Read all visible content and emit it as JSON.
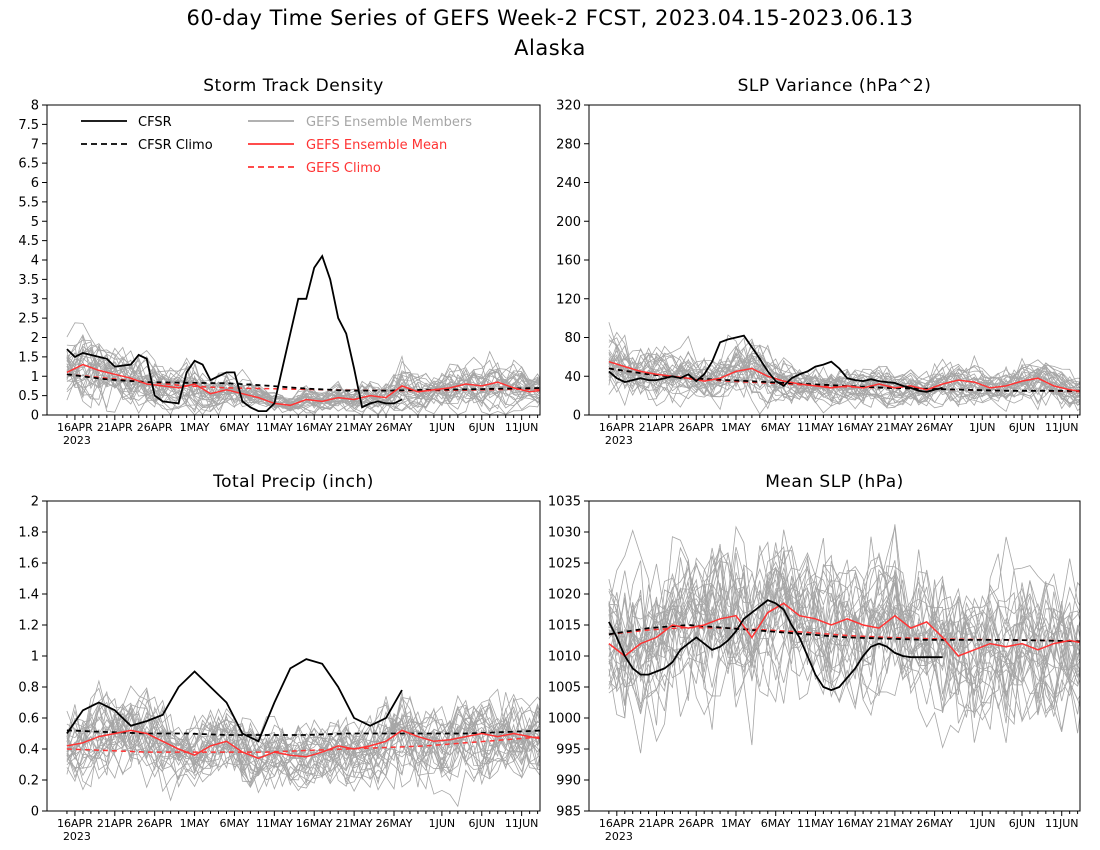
{
  "title": "60-day Time Series of GEFS Week-2 FCST, 2023.04.15-2023.06.13",
  "subtitle": "Alaska",
  "x_tick_labels": [
    "16APR",
    "21APR",
    "26APR",
    "1MAY",
    "6MAY",
    "11MAY",
    "16MAY",
    "21MAY",
    "26MAY",
    "1JUN",
    "6JUN",
    "11JUN"
  ],
  "year_label": "2023",
  "legend": {
    "cfsr": "CFSR",
    "cfsr_climo": "CFSR Climo",
    "members": "GEFS Ensemble Members",
    "mean": "GEFS Ensemble Mean",
    "gefs_climo": "GEFS Climo"
  },
  "colors": {
    "cfsr": "#000000",
    "members": "#a6a6a6",
    "mean": "#ff3333",
    "gefs_climo": "#ff3333"
  },
  "chart_data": [
    {
      "type": "line",
      "title": "Storm Track Density",
      "ylim": [
        0,
        8
      ],
      "yticks": [
        "0",
        "0.5",
        "1",
        "1.5",
        "2",
        "2.5",
        "3",
        "3.5",
        "4",
        "4.5",
        "5",
        "5.5",
        "6",
        "6.5",
        "7",
        "7.5",
        "8"
      ],
      "xrange_days": [
        0,
        60
      ],
      "series": [
        {
          "name": "CFSR",
          "days": [
            0,
            1,
            2,
            4,
            5,
            6,
            8,
            9,
            10,
            11,
            12,
            14,
            15,
            16,
            17,
            18,
            20,
            21,
            22,
            23,
            24,
            25,
            26,
            27,
            28,
            29,
            30,
            31,
            32,
            33,
            34,
            35,
            36,
            37,
            38,
            39,
            40,
            41,
            42
          ],
          "values": [
            1.7,
            1.5,
            1.6,
            1.5,
            1.45,
            1.25,
            1.3,
            1.55,
            1.45,
            0.5,
            0.35,
            0.3,
            1.1,
            1.4,
            1.3,
            0.9,
            1.1,
            1.1,
            0.35,
            0.2,
            0.1,
            0.1,
            0.3,
            1.2,
            2.1,
            3.0,
            3.0,
            3.8,
            4.1,
            3.5,
            2.5,
            2.1,
            1.2,
            0.2,
            0.3,
            0.35,
            0.3,
            0.3,
            0.4
          ]
        },
        {
          "name": "CFSR Climo",
          "days": [
            0,
            5,
            10,
            15,
            20,
            25,
            30,
            35,
            40,
            45,
            50,
            55,
            60
          ],
          "values": [
            1.05,
            0.92,
            0.85,
            0.83,
            0.82,
            0.76,
            0.68,
            0.63,
            0.63,
            0.65,
            0.66,
            0.68,
            0.7
          ]
        },
        {
          "name": "GEFS Ensemble Mean",
          "days": [
            0,
            2,
            4,
            6,
            8,
            10,
            12,
            14,
            16,
            18,
            20,
            22,
            24,
            26,
            28,
            30,
            32,
            34,
            36,
            38,
            40,
            42,
            44,
            46,
            48,
            50,
            52,
            54,
            56,
            58,
            60
          ],
          "values": [
            1.1,
            1.3,
            1.15,
            1.05,
            0.95,
            0.8,
            0.75,
            0.7,
            0.8,
            0.55,
            0.65,
            0.55,
            0.45,
            0.3,
            0.25,
            0.4,
            0.35,
            0.45,
            0.4,
            0.5,
            0.45,
            0.75,
            0.6,
            0.65,
            0.7,
            0.8,
            0.75,
            0.85,
            0.7,
            0.6,
            0.65
          ]
        },
        {
          "name": "GEFS Climo",
          "days": [
            0,
            5,
            10,
            15,
            20,
            25,
            30,
            35,
            40,
            45,
            50,
            55,
            60
          ],
          "values": [
            1.05,
            0.95,
            0.85,
            0.75,
            0.7,
            0.68,
            0.66,
            0.64,
            0.63,
            0.63,
            0.64,
            0.66,
            0.67
          ]
        }
      ]
    },
    {
      "type": "line",
      "title": "SLP Variance (hPa^2)",
      "ylim": [
        0,
        320
      ],
      "yticks": [
        "0",
        "40",
        "80",
        "120",
        "160",
        "200",
        "240",
        "280",
        "320"
      ],
      "xrange_days": [
        0,
        60
      ],
      "series": [
        {
          "name": "CFSR",
          "days": [
            0,
            1,
            2,
            3,
            4,
            5,
            6,
            7,
            8,
            9,
            10,
            11,
            12,
            13,
            14,
            15,
            16,
            17,
            18,
            19,
            20,
            21,
            22,
            23,
            24,
            25,
            26,
            27,
            28,
            29,
            30,
            31,
            32,
            33,
            34,
            35,
            36,
            37,
            38,
            39,
            40,
            41,
            42
          ],
          "values": [
            45,
            38,
            34,
            36,
            38,
            36,
            36,
            38,
            40,
            38,
            42,
            35,
            42,
            55,
            75,
            78,
            80,
            82,
            70,
            58,
            45,
            35,
            30,
            38,
            42,
            45,
            50,
            52,
            55,
            48,
            38,
            36,
            35,
            37,
            35,
            34,
            33,
            30,
            28,
            25,
            24,
            26,
            28
          ]
        },
        {
          "name": "CFSR Climo",
          "days": [
            0,
            5,
            10,
            15,
            20,
            25,
            30,
            35,
            40,
            45,
            50,
            55,
            60
          ],
          "values": [
            48,
            42,
            38,
            36,
            34,
            32,
            30,
            28,
            27,
            26,
            25,
            25,
            25
          ]
        },
        {
          "name": "GEFS Ensemble Mean",
          "days": [
            0,
            2,
            4,
            6,
            8,
            10,
            12,
            14,
            16,
            18,
            20,
            22,
            24,
            26,
            28,
            30,
            32,
            34,
            36,
            38,
            40,
            42,
            44,
            46,
            48,
            50,
            52,
            54,
            56,
            58,
            60
          ],
          "values": [
            55,
            50,
            45,
            42,
            40,
            38,
            35,
            38,
            45,
            48,
            40,
            35,
            32,
            30,
            28,
            30,
            28,
            32,
            28,
            30,
            26,
            32,
            36,
            34,
            28,
            30,
            35,
            38,
            30,
            26,
            24
          ]
        },
        {
          "name": "GEFS Climo",
          "days": [
            0,
            5,
            10,
            15,
            20,
            25,
            30,
            35,
            40,
            45,
            50,
            55,
            60
          ],
          "values": [
            48,
            42,
            38,
            35,
            33,
            31,
            29,
            28,
            27,
            26,
            25,
            25,
            24
          ]
        }
      ]
    },
    {
      "type": "line",
      "title": "Total Precip (inch)",
      "ylim": [
        0,
        2
      ],
      "yticks": [
        "0",
        "0.2",
        "0.4",
        "0.6",
        "0.8",
        "1",
        "1.2",
        "1.4",
        "1.6",
        "1.8",
        "2"
      ],
      "xrange_days": [
        0,
        60
      ],
      "series": [
        {
          "name": "CFSR",
          "days": [
            0,
            2,
            4,
            6,
            8,
            10,
            12,
            14,
            16,
            18,
            20,
            22,
            24,
            26,
            28,
            30,
            32,
            34,
            36,
            38,
            40,
            42
          ],
          "values": [
            0.5,
            0.65,
            0.7,
            0.65,
            0.55,
            0.58,
            0.62,
            0.8,
            0.9,
            0.8,
            0.7,
            0.5,
            0.45,
            0.7,
            0.92,
            0.98,
            0.95,
            0.8,
            0.6,
            0.55,
            0.6,
            0.78
          ]
        },
        {
          "name": "CFSR Climo",
          "days": [
            0,
            5,
            10,
            15,
            20,
            25,
            30,
            35,
            40,
            45,
            50,
            55,
            60
          ],
          "values": [
            0.52,
            0.51,
            0.5,
            0.5,
            0.49,
            0.49,
            0.49,
            0.5,
            0.5,
            0.5,
            0.5,
            0.51,
            0.52
          ]
        },
        {
          "name": "GEFS Ensemble Mean",
          "days": [
            0,
            2,
            4,
            6,
            8,
            10,
            12,
            14,
            16,
            18,
            20,
            22,
            24,
            26,
            28,
            30,
            32,
            34,
            36,
            38,
            40,
            42,
            44,
            46,
            48,
            50,
            52,
            54,
            56,
            58,
            60
          ],
          "values": [
            0.42,
            0.44,
            0.48,
            0.5,
            0.52,
            0.5,
            0.45,
            0.4,
            0.36,
            0.42,
            0.45,
            0.38,
            0.34,
            0.38,
            0.36,
            0.35,
            0.38,
            0.42,
            0.4,
            0.42,
            0.45,
            0.52,
            0.48,
            0.45,
            0.46,
            0.48,
            0.5,
            0.48,
            0.5,
            0.48,
            0.46
          ]
        },
        {
          "name": "GEFS Climo",
          "days": [
            0,
            5,
            10,
            15,
            20,
            25,
            30,
            35,
            40,
            45,
            50,
            55,
            60
          ],
          "values": [
            0.4,
            0.39,
            0.38,
            0.38,
            0.38,
            0.38,
            0.39,
            0.4,
            0.41,
            0.42,
            0.44,
            0.46,
            0.48
          ]
        }
      ]
    },
    {
      "type": "line",
      "title": "Mean SLP (hPa)",
      "ylim": [
        985,
        1035
      ],
      "yticks": [
        "985",
        "990",
        "995",
        "1000",
        "1005",
        "1010",
        "1015",
        "1020",
        "1025",
        "1030",
        "1035"
      ],
      "xrange_days": [
        0,
        60
      ],
      "series": [
        {
          "name": "CFSR",
          "days": [
            0,
            1,
            2,
            3,
            4,
            5,
            6,
            7,
            8,
            9,
            10,
            11,
            12,
            13,
            14,
            15,
            16,
            17,
            18,
            19,
            20,
            21,
            22,
            23,
            24,
            25,
            26,
            27,
            28,
            29,
            30,
            31,
            32,
            33,
            34,
            35,
            36,
            37,
            38,
            39,
            40,
            41,
            42
          ],
          "values": [
            1015.5,
            1013,
            1010,
            1008,
            1007,
            1007,
            1007.5,
            1008,
            1009,
            1011,
            1012,
            1013,
            1012,
            1011,
            1011.5,
            1012.5,
            1014,
            1016,
            1017,
            1018,
            1019,
            1018.5,
            1017.5,
            1015,
            1013,
            1010,
            1007,
            1005,
            1004.5,
            1005,
            1006.5,
            1008,
            1010,
            1011.5,
            1012,
            1011.5,
            1010.5,
            1010,
            1009.8,
            1009.8,
            1009.8,
            1009.8,
            1009.8
          ]
        },
        {
          "name": "CFSR Climo",
          "days": [
            0,
            5,
            10,
            15,
            20,
            25,
            30,
            35,
            40,
            45,
            50,
            55,
            60
          ],
          "values": [
            1013.5,
            1014.5,
            1015,
            1014.5,
            1014,
            1013.5,
            1013,
            1012.8,
            1012.6,
            1012.6,
            1012.6,
            1012.5,
            1012.3
          ]
        },
        {
          "name": "GEFS Ensemble Mean",
          "days": [
            0,
            2,
            4,
            6,
            8,
            10,
            12,
            14,
            16,
            18,
            20,
            22,
            24,
            26,
            28,
            30,
            32,
            34,
            36,
            38,
            40,
            42,
            44,
            46,
            48,
            50,
            52,
            54,
            56,
            58,
            60
          ],
          "values": [
            1012,
            1010,
            1012,
            1013,
            1015,
            1014.5,
            1015,
            1016,
            1016.5,
            1013,
            1017,
            1018.5,
            1016.5,
            1016,
            1015,
            1016,
            1015,
            1014.5,
            1016.5,
            1014.5,
            1015.5,
            1013,
            1010,
            1011,
            1012,
            1011.5,
            1012,
            1011,
            1012,
            1012.5,
            1012
          ]
        },
        {
          "name": "GEFS Climo",
          "days": [
            0,
            5,
            10,
            15,
            20,
            25,
            30,
            35,
            40,
            45,
            50,
            55,
            60
          ],
          "values": [
            1013.5,
            1014.2,
            1014.6,
            1014.5,
            1014.2,
            1013.8,
            1013.3,
            1013,
            1012.8,
            1012.7,
            1012.6,
            1012.5,
            1012.4
          ]
        }
      ]
    }
  ]
}
